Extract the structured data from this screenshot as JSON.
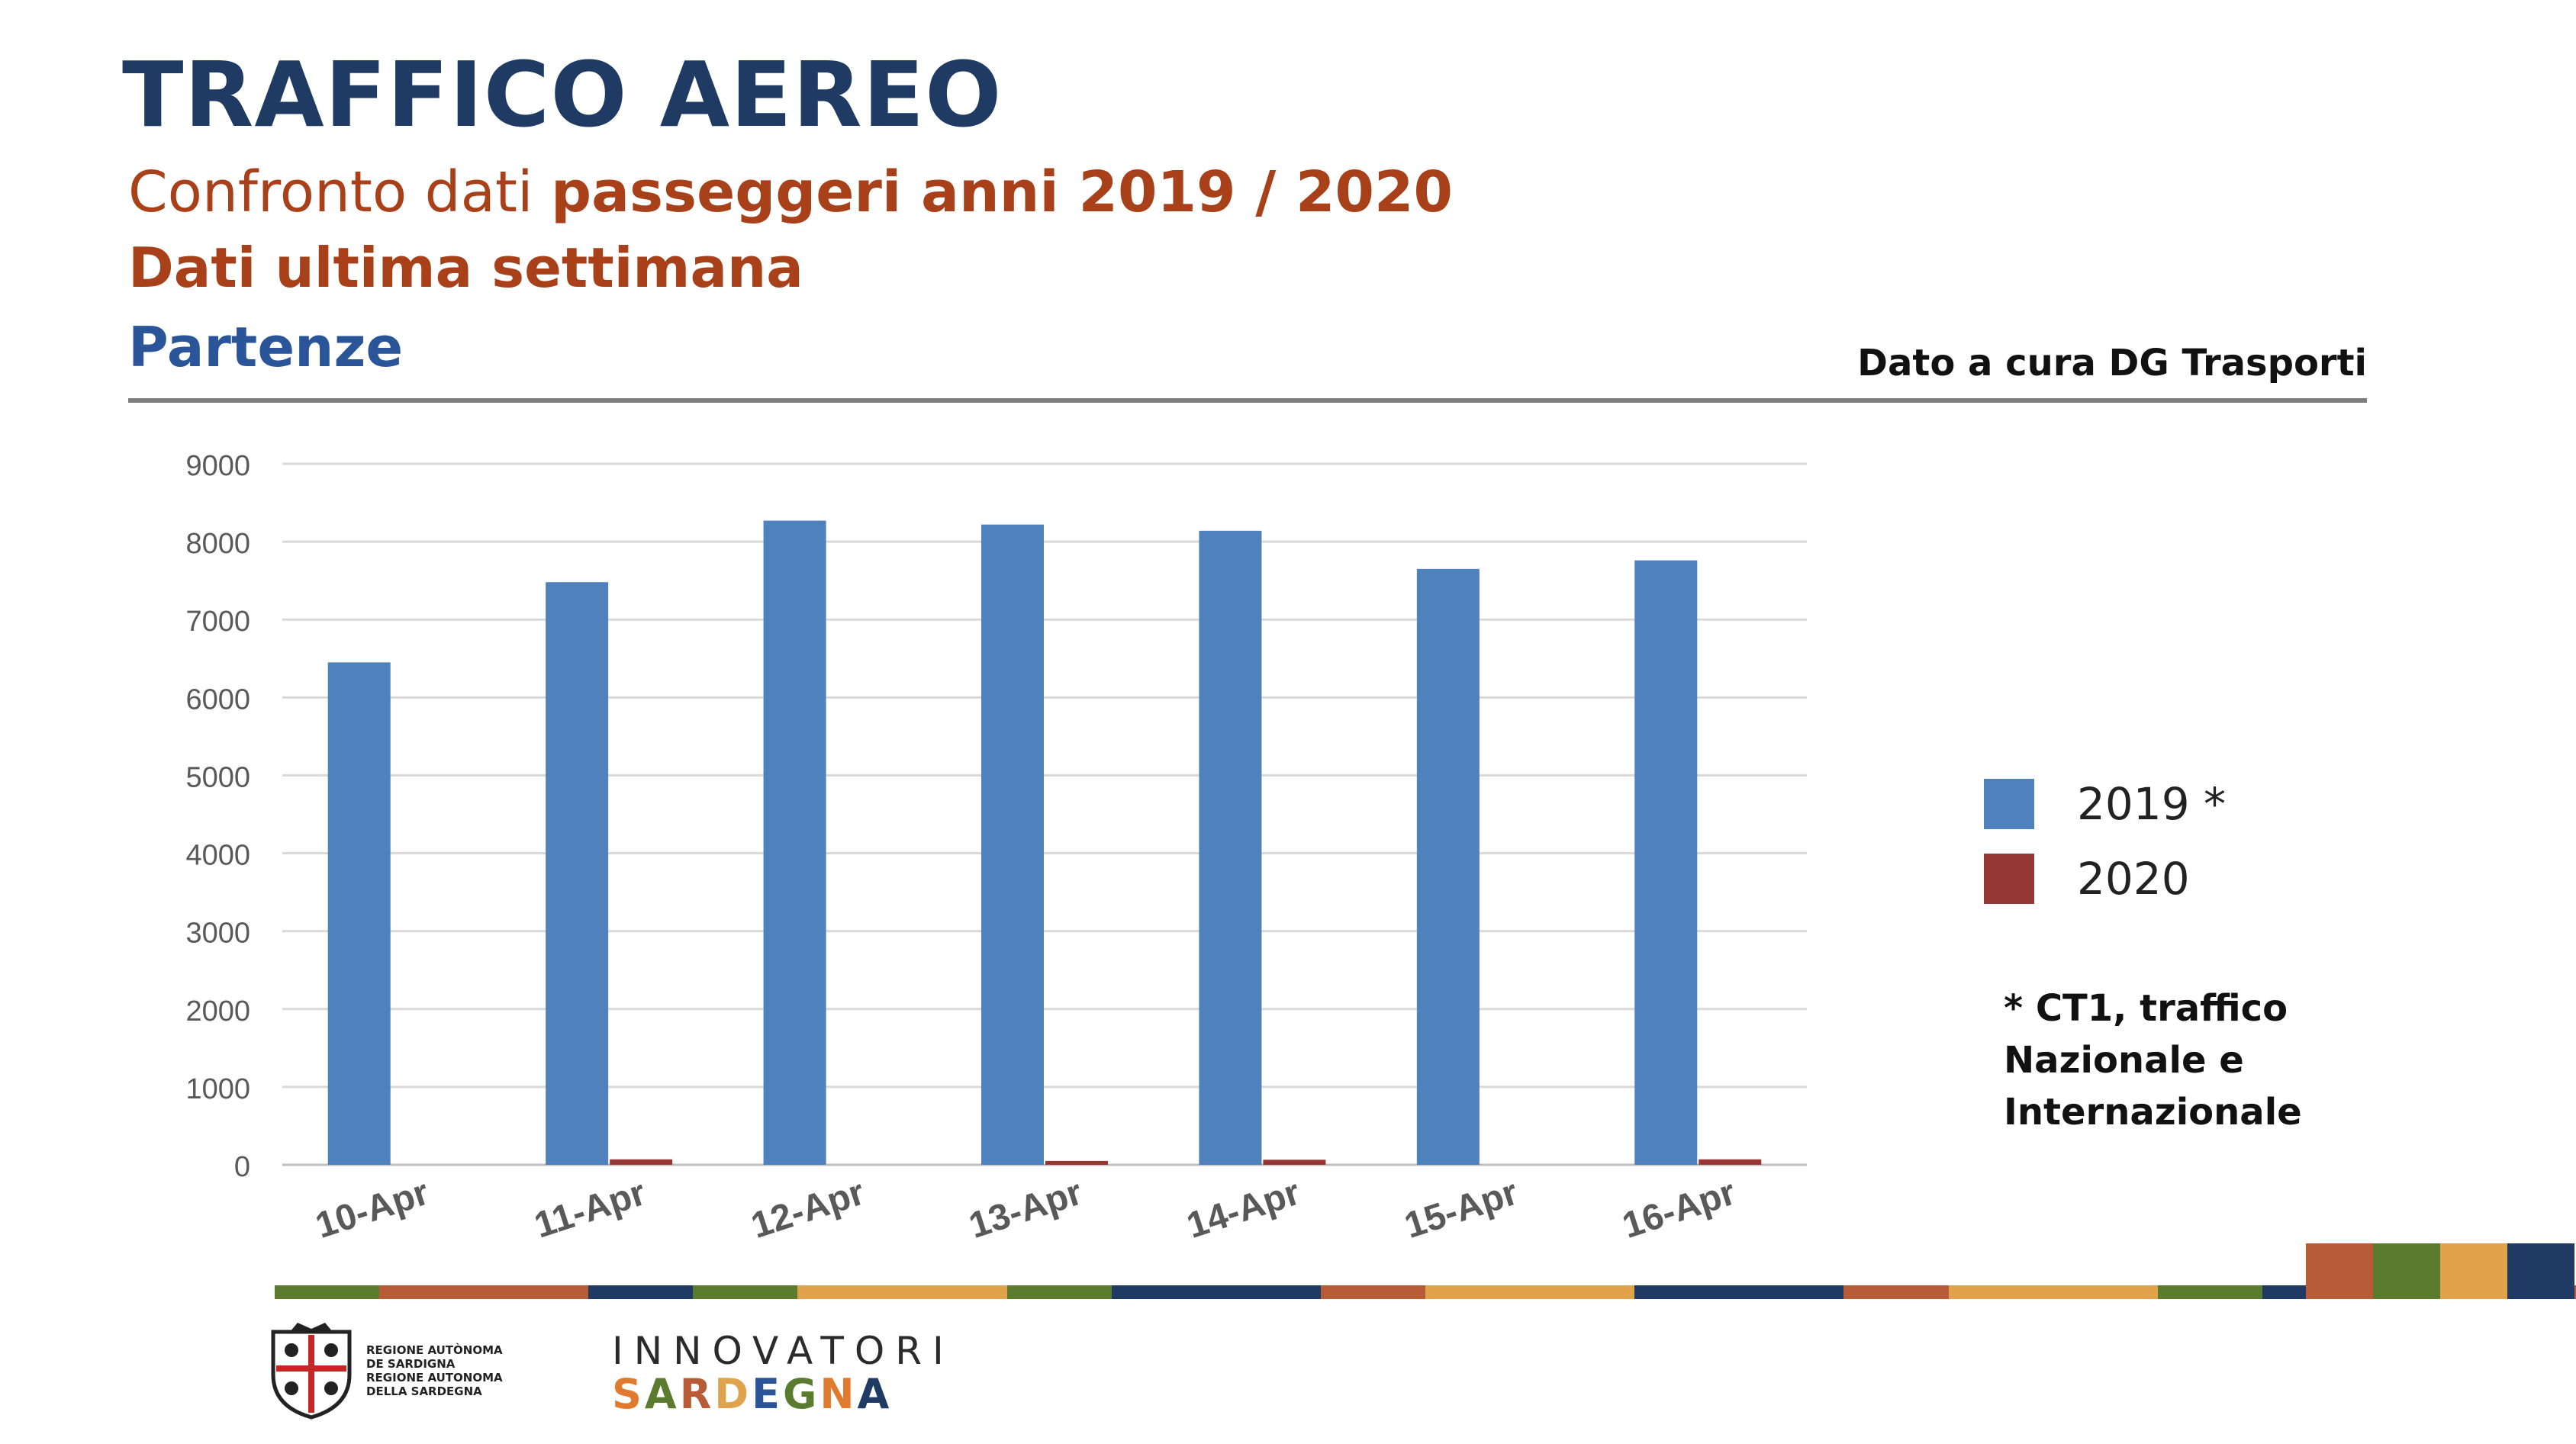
{
  "header": {
    "title": "TRAFFICO AEREO",
    "subtitle_prefix": "Confronto dati ",
    "subtitle_bold": "passeggeri anni 2019 / 2020",
    "week_label": "Dati ultima settimana",
    "section_label": "Partenze",
    "source": "Dato a cura DG Trasporti"
  },
  "chart_data": {
    "type": "bar",
    "categories": [
      "10-Apr",
      "11-Apr",
      "12-Apr",
      "13-Apr",
      "14-Apr",
      "15-Apr",
      "16-Apr"
    ],
    "series": [
      {
        "name": "2019 *",
        "color": "#4f81bd",
        "values": [
          6450,
          7480,
          8270,
          8220,
          8140,
          7650,
          7760
        ]
      },
      {
        "name": "2020",
        "color": "#953735",
        "values": [
          0,
          70,
          0,
          50,
          65,
          0,
          70
        ]
      }
    ],
    "ylim": [
      0,
      9000
    ],
    "yticks": [
      "0",
      "1000",
      "2000",
      "3000",
      "4000",
      "5000",
      "6000",
      "7000",
      "8000",
      "9000"
    ],
    "grid": true,
    "legend_position": "right"
  },
  "note": {
    "lines": [
      "* CT1, traffico",
      "Nazionale e",
      "Internazionale"
    ]
  },
  "footer": {
    "org_lines": [
      "REGIONE AUTÒNOMA",
      "DE SARDIGNA",
      "REGIONE AUTONOMA",
      "DELLA SARDEGNA"
    ],
    "innovatori_top": "INNOVATORI",
    "innovatori_bottom": "SARDEGNA",
    "stripe_colors": [
      "#5b7b2f",
      "#b85c38",
      "#b85c38",
      "#1f3b63",
      "#5b7b2f",
      "#e0a24a",
      "#e0a24a",
      "#5b7b2f",
      "#1f3b63",
      "#1f3b63",
      "#b85c38",
      "#e0a24a",
      "#e0a24a",
      "#1f3b63",
      "#1f3b63",
      "#b85c38",
      "#e0a24a",
      "#e0a24a",
      "#5b7b2f",
      "#1f3b63",
      "#1f3b63",
      "#b85c38"
    ],
    "block_colors": [
      "#b85c38",
      "#5b7b2f",
      "#e0a24a",
      "#1f3b63"
    ],
    "sardegna_colors": [
      "#e07a2e",
      "#5b7b2f",
      "#b85c38",
      "#e0a24a",
      "#2a5599",
      "#5b7b2f",
      "#e07a2e",
      "#1f3b63"
    ]
  }
}
